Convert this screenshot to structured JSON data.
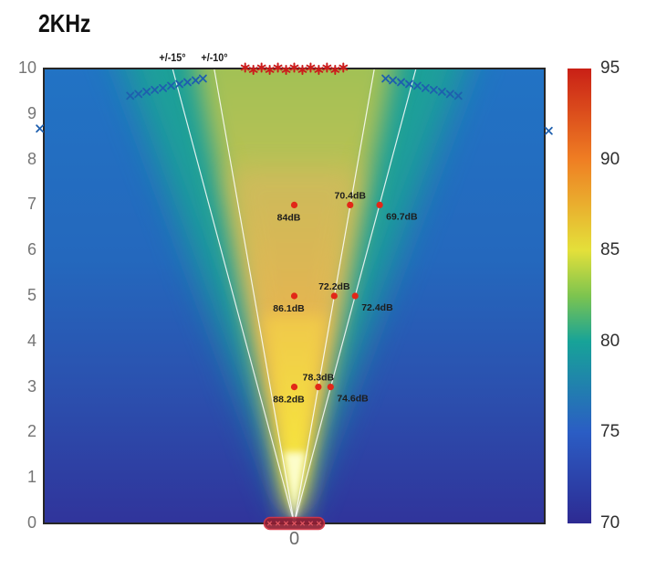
{
  "title": "2KHz",
  "chart_data": {
    "type": "heatmap",
    "title": "2KHz",
    "description": "Sound pressure level (dB) beam pattern map at 2KHz, distance 0-10 on vertical axis, lateral position on horizontal axis with single tick 0 at source",
    "y_ticks": [
      10,
      9,
      8,
      7,
      6,
      5,
      4,
      3,
      2,
      1,
      0
    ],
    "y_range": [
      0,
      10
    ],
    "x_tick_labels": [
      "0"
    ],
    "x_range": [
      -5.52,
      5.52
    ],
    "grid": false,
    "angle_guides": [
      {
        "label": "+/-15°",
        "deg": 15
      },
      {
        "label": "+/-10°",
        "deg": 10
      }
    ],
    "colorbar": {
      "label_unit": "dB",
      "range": [
        70,
        95
      ],
      "ticks": [
        95,
        90,
        85,
        80,
        75,
        70
      ],
      "stops": [
        {
          "v": 95,
          "c": "#c92016"
        },
        {
          "v": 90,
          "c": "#ef7e23"
        },
        {
          "v": 85,
          "c": "#e4e03a"
        },
        {
          "v": 82.5,
          "c": "#7cc44f"
        },
        {
          "v": 80,
          "c": "#17a398"
        },
        {
          "v": 75,
          "c": "#2b5dc4"
        },
        {
          "v": 70,
          "c": "#2d2a92"
        }
      ]
    },
    "measurements": [
      {
        "x": 0.0,
        "y": 7,
        "label": "84dB",
        "label_pos": "below-left"
      },
      {
        "x": 1.23,
        "y": 7,
        "label": "70.4dB",
        "label_pos": "above"
      },
      {
        "x": 1.88,
        "y": 7,
        "label": "69.7dB",
        "label_pos": "below-right"
      },
      {
        "x": 0.0,
        "y": 5,
        "label": "86.1dB",
        "label_pos": "below-left"
      },
      {
        "x": 0.88,
        "y": 5,
        "label": "72.2dB",
        "label_pos": "above"
      },
      {
        "x": 1.34,
        "y": 5,
        "label": "72.4dB",
        "label_pos": "below-right"
      },
      {
        "x": 0.0,
        "y": 3,
        "label": "88.2dB",
        "label_pos": "below-left"
      },
      {
        "x": 0.53,
        "y": 3,
        "label": "78.3dB",
        "label_pos": "above"
      },
      {
        "x": 0.8,
        "y": 3,
        "label": "74.6dB",
        "label_pos": "below-right"
      }
    ],
    "measurement_marker": {
      "shape": "dot",
      "color": "#e22718",
      "radius": 3.6
    },
    "label_style_color": "#1d1d1d",
    "marker_series": [
      {
        "name": "top-boundary-asterisks",
        "marker": "asterisk",
        "color": "#cc1c1c",
        "points": [
          [
            -1.08,
            10
          ],
          [
            -0.9,
            10
          ],
          [
            -0.72,
            10
          ],
          [
            -0.54,
            10
          ],
          [
            -0.36,
            10
          ],
          [
            -0.18,
            10
          ],
          [
            0,
            10
          ],
          [
            0.18,
            10
          ],
          [
            0.36,
            10
          ],
          [
            0.54,
            10
          ],
          [
            0.72,
            10
          ],
          [
            0.9,
            10
          ],
          [
            1.08,
            10
          ]
        ]
      },
      {
        "name": "left-x-chain",
        "marker": "x",
        "color": "#1e5fae",
        "points": [
          [
            -3.61,
            9.4
          ],
          [
            -3.43,
            9.44
          ],
          [
            -3.25,
            9.49
          ],
          [
            -3.07,
            9.53
          ],
          [
            -2.89,
            9.57
          ],
          [
            -2.71,
            9.62
          ],
          [
            -2.53,
            9.66
          ],
          [
            -2.35,
            9.7
          ],
          [
            -2.17,
            9.74
          ],
          [
            -2.01,
            9.78
          ]
        ]
      },
      {
        "name": "right-x-chain",
        "marker": "x",
        "color": "#1e5fae",
        "points": [
          [
            2.01,
            9.78
          ],
          [
            2.17,
            9.74
          ],
          [
            2.35,
            9.7
          ],
          [
            2.53,
            9.66
          ],
          [
            2.71,
            9.62
          ],
          [
            2.89,
            9.57
          ],
          [
            3.07,
            9.53
          ],
          [
            3.25,
            9.49
          ],
          [
            3.43,
            9.44
          ],
          [
            3.61,
            9.4
          ]
        ]
      },
      {
        "name": "edge-x-markers",
        "marker": "x",
        "color": "#1e5fae",
        "points": [
          [
            -5.6,
            8.68
          ],
          [
            5.6,
            8.63
          ]
        ]
      }
    ],
    "source_array": {
      "x": 0,
      "y": 0,
      "outline": "#d63545",
      "fill": "#8f1f33",
      "tick_color": "#e05560"
    },
    "guide_line_color": "rgba(255,255,255,0.85)",
    "palette": {
      "bg_top": "#2273c4",
      "bg_mid": "#2b51af",
      "bg_bottom": "#30349b",
      "fringe_teal": "#1aa396",
      "body_top": "#9cc155",
      "body_mid": "#dcc05e",
      "body_low": "#f0bd4e",
      "body_bottom": "#f6ef3c",
      "orange_top": "#cdbb5e",
      "orange_mid": "#eeb24a",
      "orange_bottom": "#f3d83e",
      "core_top": "#f0c84a",
      "core_bottom": "#f9f338",
      "apex_glow": "#fdffd2",
      "border": "#262626"
    }
  }
}
